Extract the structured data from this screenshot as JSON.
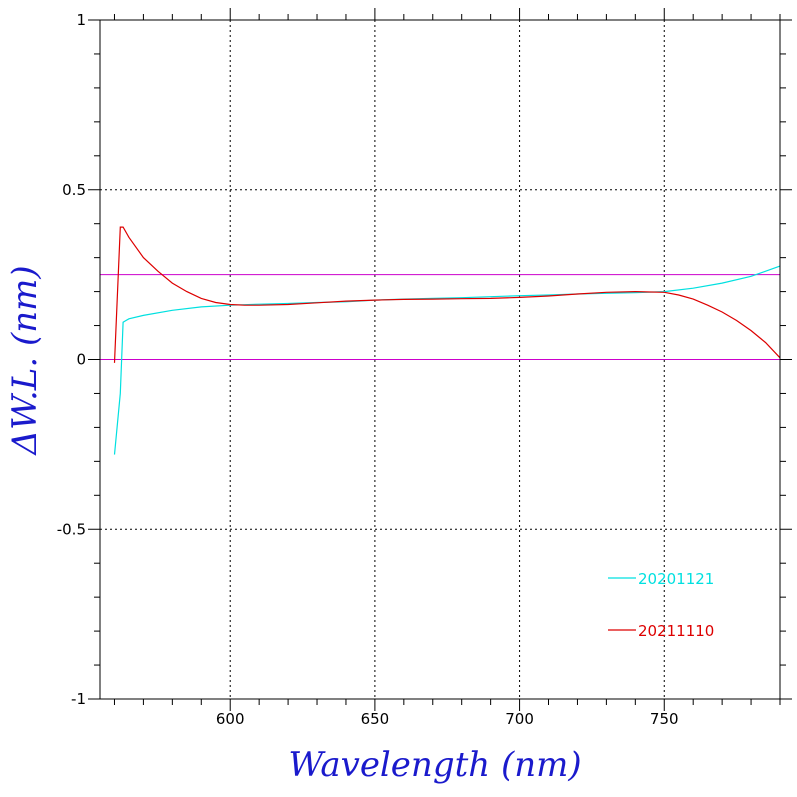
{
  "chart_data": {
    "type": "line",
    "xlabel": "Wavelength (nm)",
    "ylabel": "ΔW.L. (nm)",
    "xlim": [
      555,
      790
    ],
    "ylim": [
      -1,
      1
    ],
    "x_ticks": [
      600,
      650,
      700,
      750
    ],
    "y_ticks": [
      -1,
      -0.5,
      0,
      0.5,
      1
    ],
    "y_tick_labels": [
      "-1",
      "-0.5",
      "0",
      "0.5",
      "1"
    ],
    "grid": "dotted, major ticks",
    "legend_placement": "bottom-right",
    "reference_lines": [
      {
        "y": 0.25,
        "color": "#cc00cc"
      },
      {
        "y": 0,
        "color": "#cc00cc"
      }
    ],
    "series": [
      {
        "name": "20201121",
        "color": "#00e0e0",
        "points": [
          [
            560,
            -0.28
          ],
          [
            562,
            -0.1
          ],
          [
            563,
            0.11
          ],
          [
            565,
            0.12
          ],
          [
            570,
            0.13
          ],
          [
            580,
            0.145
          ],
          [
            590,
            0.155
          ],
          [
            600,
            0.16
          ],
          [
            610,
            0.163
          ],
          [
            620,
            0.165
          ],
          [
            630,
            0.168
          ],
          [
            640,
            0.17
          ],
          [
            650,
            0.175
          ],
          [
            660,
            0.178
          ],
          [
            670,
            0.18
          ],
          [
            680,
            0.182
          ],
          [
            690,
            0.185
          ],
          [
            700,
            0.188
          ],
          [
            710,
            0.19
          ],
          [
            720,
            0.193
          ],
          [
            730,
            0.195
          ],
          [
            740,
            0.197
          ],
          [
            750,
            0.2
          ],
          [
            760,
            0.21
          ],
          [
            770,
            0.225
          ],
          [
            780,
            0.245
          ],
          [
            790,
            0.275
          ]
        ]
      },
      {
        "name": "20211110",
        "color": "#dd0000",
        "points": [
          [
            560,
            -0.01
          ],
          [
            562,
            0.39
          ],
          [
            563,
            0.39
          ],
          [
            565,
            0.36
          ],
          [
            570,
            0.3
          ],
          [
            575,
            0.26
          ],
          [
            580,
            0.225
          ],
          [
            585,
            0.2
          ],
          [
            590,
            0.18
          ],
          [
            595,
            0.168
          ],
          [
            600,
            0.162
          ],
          [
            605,
            0.16
          ],
          [
            610,
            0.16
          ],
          [
            620,
            0.162
          ],
          [
            630,
            0.167
          ],
          [
            640,
            0.172
          ],
          [
            650,
            0.175
          ],
          [
            660,
            0.177
          ],
          [
            670,
            0.178
          ],
          [
            680,
            0.179
          ],
          [
            690,
            0.18
          ],
          [
            700,
            0.183
          ],
          [
            710,
            0.187
          ],
          [
            720,
            0.193
          ],
          [
            730,
            0.198
          ],
          [
            740,
            0.2
          ],
          [
            750,
            0.198
          ],
          [
            755,
            0.19
          ],
          [
            760,
            0.178
          ],
          [
            765,
            0.16
          ],
          [
            770,
            0.14
          ],
          [
            775,
            0.115
          ],
          [
            780,
            0.085
          ],
          [
            785,
            0.05
          ],
          [
            790,
            0.005
          ]
        ]
      }
    ]
  }
}
